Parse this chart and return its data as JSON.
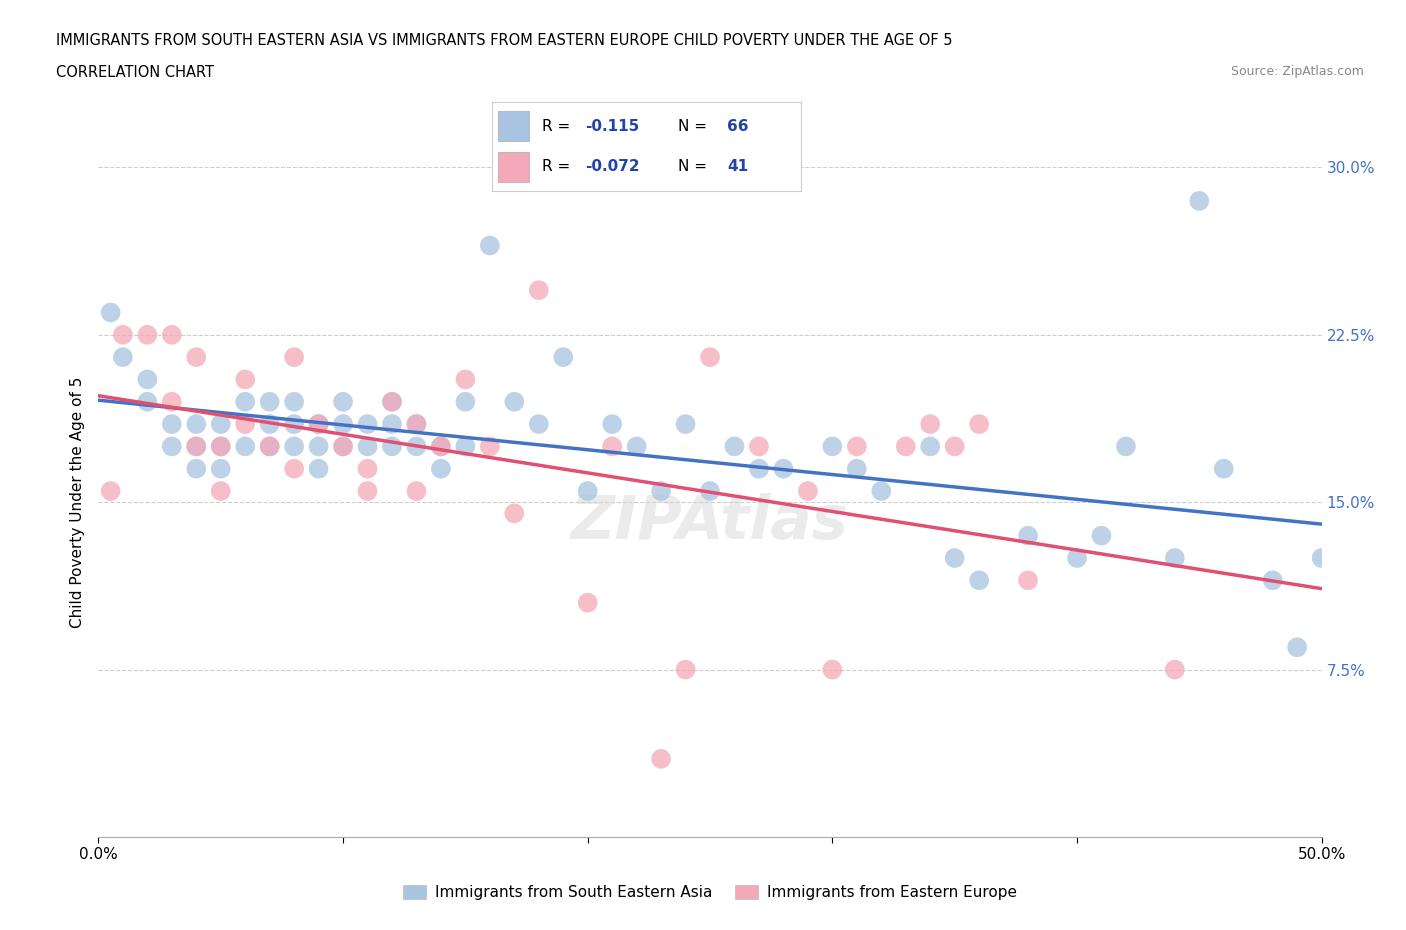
{
  "title_line1": "IMMIGRANTS FROM SOUTH EASTERN ASIA VS IMMIGRANTS FROM EASTERN EUROPE CHILD POVERTY UNDER THE AGE OF 5",
  "title_line2": "CORRELATION CHART",
  "source_text": "Source: ZipAtlas.com",
  "ylabel": "Child Poverty Under the Age of 5",
  "xlim": [
    0,
    0.5
  ],
  "ylim": [
    0,
    0.3
  ],
  "blue_color": "#a8c4e0",
  "pink_color": "#f4a8b8",
  "blue_line_color": "#4472c4",
  "pink_line_color": "#e05070",
  "watermark": "ZIPAtlas",
  "legend_label_blue": "Immigrants from South Eastern Asia",
  "legend_label_pink": "Immigrants from Eastern Europe",
  "blue_scatter_x": [
    0.005,
    0.01,
    0.02,
    0.02,
    0.03,
    0.03,
    0.04,
    0.04,
    0.04,
    0.05,
    0.05,
    0.05,
    0.06,
    0.06,
    0.07,
    0.07,
    0.07,
    0.08,
    0.08,
    0.08,
    0.09,
    0.09,
    0.09,
    0.1,
    0.1,
    0.1,
    0.11,
    0.11,
    0.12,
    0.12,
    0.12,
    0.13,
    0.13,
    0.14,
    0.14,
    0.15,
    0.15,
    0.16,
    0.17,
    0.18,
    0.19,
    0.2,
    0.21,
    0.22,
    0.23,
    0.24,
    0.25,
    0.26,
    0.27,
    0.28,
    0.3,
    0.31,
    0.32,
    0.34,
    0.35,
    0.36,
    0.38,
    0.4,
    0.41,
    0.42,
    0.44,
    0.45,
    0.46,
    0.48,
    0.49,
    0.5
  ],
  "blue_scatter_y": [
    0.235,
    0.215,
    0.205,
    0.195,
    0.185,
    0.175,
    0.185,
    0.175,
    0.165,
    0.185,
    0.175,
    0.165,
    0.195,
    0.175,
    0.195,
    0.185,
    0.175,
    0.195,
    0.185,
    0.175,
    0.185,
    0.175,
    0.165,
    0.195,
    0.185,
    0.175,
    0.185,
    0.175,
    0.195,
    0.185,
    0.175,
    0.185,
    0.175,
    0.175,
    0.165,
    0.195,
    0.175,
    0.265,
    0.195,
    0.185,
    0.215,
    0.155,
    0.185,
    0.175,
    0.155,
    0.185,
    0.155,
    0.175,
    0.165,
    0.165,
    0.175,
    0.165,
    0.155,
    0.175,
    0.125,
    0.115,
    0.135,
    0.125,
    0.135,
    0.175,
    0.125,
    0.285,
    0.165,
    0.115,
    0.085,
    0.125
  ],
  "pink_scatter_x": [
    0.005,
    0.01,
    0.02,
    0.03,
    0.03,
    0.04,
    0.04,
    0.05,
    0.05,
    0.06,
    0.06,
    0.07,
    0.08,
    0.08,
    0.09,
    0.1,
    0.11,
    0.11,
    0.12,
    0.13,
    0.13,
    0.14,
    0.15,
    0.16,
    0.17,
    0.18,
    0.2,
    0.21,
    0.23,
    0.24,
    0.25,
    0.27,
    0.29,
    0.3,
    0.31,
    0.33,
    0.34,
    0.35,
    0.36,
    0.38,
    0.44
  ],
  "pink_scatter_y": [
    0.155,
    0.225,
    0.225,
    0.225,
    0.195,
    0.215,
    0.175,
    0.175,
    0.155,
    0.205,
    0.185,
    0.175,
    0.165,
    0.215,
    0.185,
    0.175,
    0.165,
    0.155,
    0.195,
    0.185,
    0.155,
    0.175,
    0.205,
    0.175,
    0.145,
    0.245,
    0.105,
    0.175,
    0.035,
    0.075,
    0.215,
    0.175,
    0.155,
    0.075,
    0.175,
    0.175,
    0.185,
    0.175,
    0.185,
    0.115,
    0.075
  ]
}
